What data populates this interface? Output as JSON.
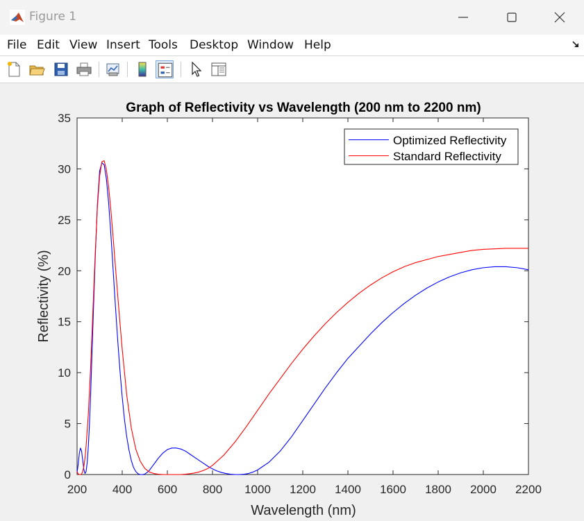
{
  "window": {
    "title": "Figure 1",
    "controls": [
      "minimize",
      "maximize",
      "close"
    ]
  },
  "menu": [
    "File",
    "Edit",
    "View",
    "Insert",
    "Tools",
    "Desktop",
    "Window",
    "Help"
  ],
  "toolbar": {
    "tools": [
      "new-figure-icon",
      "open-file-icon",
      "save-icon",
      "print-icon",
      "link-plot-icon",
      "colorbar-icon",
      "legend-icon",
      "pointer-icon",
      "property-editor-icon"
    ],
    "active": "legend-icon"
  },
  "colors": {
    "optimized": "#0000ff",
    "standard": "#ff0000",
    "axes_bg": "#ffffff",
    "figure_bg": "#f0f0f0"
  },
  "chart_data": {
    "type": "line",
    "title": "Graph of Reflectivity vs Wavelength (200 nm to 2200 nm)",
    "xlabel": "Wavelength (nm)",
    "ylabel": "Reflectivity (%)",
    "xlim": [
      200,
      2200
    ],
    "ylim": [
      0,
      35
    ],
    "xticks": [
      200,
      400,
      600,
      800,
      1000,
      1200,
      1400,
      1600,
      1800,
      2000,
      2200
    ],
    "yticks": [
      0,
      5,
      10,
      15,
      20,
      25,
      30,
      35
    ],
    "grid": false,
    "legend": "top-right",
    "series": [
      {
        "name": "Optimized Reflectivity",
        "color": "#0000ff",
        "x": [
          200,
          205,
          210,
          215,
          220,
          225,
          230,
          235,
          240,
          245,
          250,
          255,
          260,
          270,
          280,
          290,
          300,
          310,
          320,
          330,
          340,
          350,
          360,
          370,
          380,
          390,
          400,
          410,
          420,
          430,
          440,
          450,
          460,
          470,
          480,
          490,
          500,
          510,
          520,
          530,
          540,
          560,
          580,
          600,
          620,
          640,
          660,
          680,
          700,
          720,
          740,
          760,
          780,
          800,
          820,
          840,
          860,
          880,
          900,
          920,
          940,
          960,
          980,
          1000,
          1050,
          1100,
          1150,
          1200,
          1250,
          1300,
          1350,
          1400,
          1450,
          1500,
          1550,
          1600,
          1650,
          1700,
          1750,
          1800,
          1850,
          1900,
          1950,
          2000,
          2050,
          2100,
          2150,
          2200
        ],
        "y": [
          0.2,
          1.0,
          2.1,
          2.6,
          2.3,
          1.4,
          0.5,
          0.1,
          0.3,
          1.2,
          2.8,
          5.0,
          7.8,
          14.5,
          21.0,
          26.5,
          29.8,
          30.6,
          30.4,
          29.0,
          26.6,
          23.5,
          20.0,
          16.5,
          13.2,
          10.2,
          7.6,
          5.4,
          3.7,
          2.4,
          1.4,
          0.7,
          0.3,
          0.08,
          0.0,
          0.0,
          0.05,
          0.2,
          0.4,
          0.7,
          1.0,
          1.6,
          2.1,
          2.45,
          2.6,
          2.6,
          2.5,
          2.3,
          2.0,
          1.7,
          1.4,
          1.1,
          0.8,
          0.55,
          0.35,
          0.2,
          0.1,
          0.03,
          0.0,
          0.0,
          0.03,
          0.1,
          0.25,
          0.45,
          1.2,
          2.3,
          3.7,
          5.3,
          6.9,
          8.5,
          10.0,
          11.4,
          12.6,
          13.8,
          14.9,
          15.9,
          16.8,
          17.6,
          18.3,
          18.9,
          19.4,
          19.8,
          20.1,
          20.3,
          20.4,
          20.4,
          20.3,
          20.1
        ]
      },
      {
        "name": "Standard Reflectivity",
        "color": "#ff0000",
        "x": [
          200,
          205,
          210,
          215,
          220,
          225,
          230,
          235,
          240,
          250,
          260,
          270,
          280,
          290,
          300,
          310,
          320,
          330,
          340,
          350,
          360,
          370,
          380,
          390,
          400,
          420,
          440,
          460,
          480,
          500,
          520,
          540,
          560,
          580,
          600,
          620,
          640,
          660,
          680,
          700,
          720,
          740,
          760,
          780,
          800,
          850,
          900,
          950,
          1000,
          1050,
          1100,
          1150,
          1200,
          1250,
          1300,
          1350,
          1400,
          1450,
          1500,
          1550,
          1600,
          1650,
          1700,
          1750,
          1800,
          1850,
          1900,
          1950,
          2000,
          2050,
          2100,
          2150,
          2200
        ],
        "y": [
          0.3,
          0.05,
          0.0,
          0.0,
          0.05,
          0.3,
          0.8,
          1.6,
          2.8,
          6.0,
          10.5,
          16.0,
          21.5,
          26.2,
          29.3,
          30.7,
          30.8,
          29.9,
          28.2,
          25.9,
          23.2,
          20.4,
          17.6,
          14.9,
          12.3,
          7.8,
          4.6,
          2.5,
          1.3,
          0.6,
          0.25,
          0.1,
          0.03,
          0.0,
          0.0,
          0.0,
          0.0,
          0.0,
          0.03,
          0.08,
          0.15,
          0.25,
          0.4,
          0.6,
          0.9,
          1.9,
          3.2,
          4.7,
          6.3,
          7.9,
          9.4,
          10.9,
          12.3,
          13.6,
          14.8,
          15.9,
          16.9,
          17.8,
          18.6,
          19.3,
          19.9,
          20.4,
          20.8,
          21.1,
          21.4,
          21.6,
          21.8,
          22.0,
          22.1,
          22.15,
          22.2,
          22.2,
          22.2
        ]
      }
    ]
  }
}
